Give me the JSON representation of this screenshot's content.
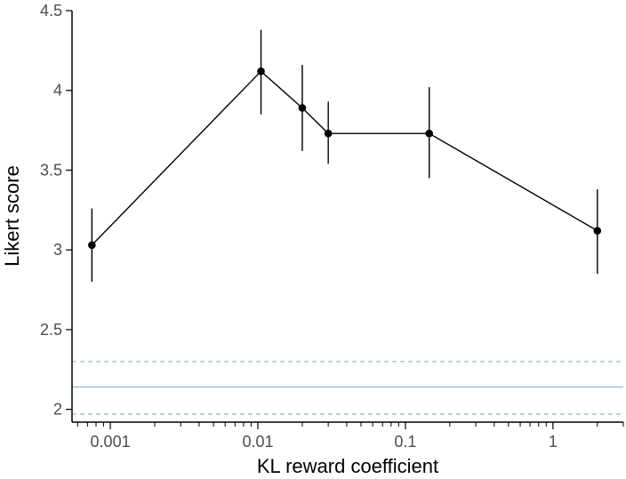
{
  "chart_data": {
    "type": "line",
    "title": "",
    "xlabel": "KL reward coefficient",
    "ylabel": "Likert score",
    "x_scale": "log",
    "xlim": [
      0.00055,
      3
    ],
    "ylim": [
      1.92,
      4.5
    ],
    "x_ticks": [
      {
        "value": 0.001,
        "label": "0.001"
      },
      {
        "value": 0.01,
        "label": "0.01"
      },
      {
        "value": 0.1,
        "label": "0.1"
      },
      {
        "value": 1,
        "label": "1"
      }
    ],
    "y_ticks": [
      {
        "value": 2,
        "label": "2"
      },
      {
        "value": 2.5,
        "label": "2.5"
      },
      {
        "value": 3,
        "label": "3"
      },
      {
        "value": 3.5,
        "label": "3.5"
      },
      {
        "value": 4,
        "label": "4"
      },
      {
        "value": 4.5,
        "label": "4.5"
      }
    ],
    "grid": false,
    "legend": "none",
    "series": [
      {
        "color": "#000000",
        "points": [
          {
            "x": 0.00075,
            "y": 3.03,
            "low": 2.8,
            "high": 3.26
          },
          {
            "x": 0.0105,
            "y": 4.12,
            "low": 3.85,
            "high": 4.38
          },
          {
            "x": 0.02,
            "y": 3.89,
            "low": 3.62,
            "high": 4.16
          },
          {
            "x": 0.03,
            "y": 3.73,
            "low": 3.54,
            "high": 3.93
          },
          {
            "x": 0.145,
            "y": 3.73,
            "low": 3.45,
            "high": 4.02
          },
          {
            "x": 2.0,
            "y": 3.12,
            "low": 2.85,
            "high": 3.38
          }
        ]
      }
    ],
    "reference_band": {
      "color": "#87bde8",
      "center": 2.14,
      "low": 1.97,
      "high": 2.3
    }
  }
}
